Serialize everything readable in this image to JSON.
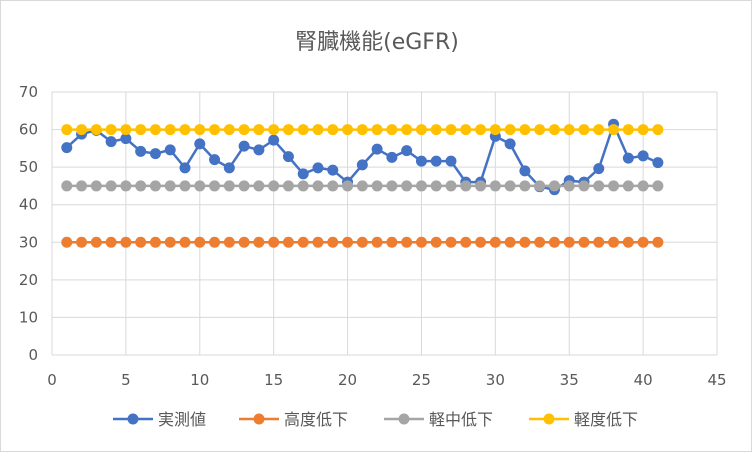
{
  "chart_data": {
    "type": "line",
    "title": "腎臓機能(eGFR)",
    "xlabel": "",
    "ylabel": "",
    "xlim": [
      0,
      45
    ],
    "ylim": [
      0,
      70
    ],
    "xticks": [
      0,
      5,
      10,
      15,
      20,
      25,
      30,
      35,
      40,
      45
    ],
    "yticks": [
      0,
      10,
      20,
      30,
      40,
      50,
      60,
      70
    ],
    "grid": true,
    "legend_position": "bottom",
    "x": [
      1,
      2,
      3,
      4,
      5,
      6,
      7,
      8,
      9,
      10,
      11,
      12,
      13,
      14,
      15,
      16,
      17,
      18,
      19,
      20,
      21,
      22,
      23,
      24,
      25,
      26,
      27,
      28,
      29,
      30,
      31,
      32,
      33,
      34,
      35,
      36,
      37,
      38,
      39,
      40,
      41
    ],
    "series": [
      {
        "name": "実測値",
        "color": "#4472c4",
        "values": [
          55.2,
          58.8,
          59.8,
          56.8,
          57.6,
          54.2,
          53.6,
          54.6,
          49.8,
          56.2,
          52,
          49.8,
          55.6,
          54.6,
          57.2,
          52.8,
          48.2,
          49.8,
          49.2,
          46,
          50.6,
          54.8,
          52.6,
          54.4,
          51.6,
          51.6,
          51.6,
          46,
          46,
          58.2,
          56.2,
          49,
          44.8,
          44,
          46.4,
          46,
          49.6,
          61.4,
          52.4,
          53,
          51.2
        ]
      },
      {
        "name": "高度低下",
        "color": "#ed7d31",
        "values": [
          30,
          30,
          30,
          30,
          30,
          30,
          30,
          30,
          30,
          30,
          30,
          30,
          30,
          30,
          30,
          30,
          30,
          30,
          30,
          30,
          30,
          30,
          30,
          30,
          30,
          30,
          30,
          30,
          30,
          30,
          30,
          30,
          30,
          30,
          30,
          30,
          30,
          30,
          30,
          30,
          30
        ]
      },
      {
        "name": "軽中低下",
        "color": "#a5a5a5",
        "values": [
          45,
          45,
          45,
          45,
          45,
          45,
          45,
          45,
          45,
          45,
          45,
          45,
          45,
          45,
          45,
          45,
          45,
          45,
          45,
          45,
          45,
          45,
          45,
          45,
          45,
          45,
          45,
          45,
          45,
          45,
          45,
          45,
          45,
          45,
          45,
          45,
          45,
          45,
          45,
          45,
          45
        ]
      },
      {
        "name": "軽度低下",
        "color": "#ffc000",
        "values": [
          60,
          60,
          60,
          60,
          60,
          60,
          60,
          60,
          60,
          60,
          60,
          60,
          60,
          60,
          60,
          60,
          60,
          60,
          60,
          60,
          60,
          60,
          60,
          60,
          60,
          60,
          60,
          60,
          60,
          60,
          60,
          60,
          60,
          60,
          60,
          60,
          60,
          60,
          60,
          60,
          60
        ]
      }
    ]
  }
}
